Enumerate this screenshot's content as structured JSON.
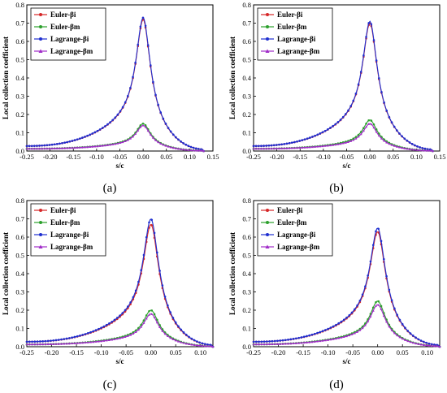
{
  "colors": {
    "euler_bi": "#d62728",
    "euler_bm": "#2ca02c",
    "lagrange_bi": "#1f2fd0",
    "lagrange_bm": "#a02cc8"
  },
  "chart_data": [
    {
      "type": "line",
      "panel_label": "(a)",
      "xlabel": "s/c",
      "ylabel": "Local collection coefficient",
      "xlim": [
        -0.25,
        0.15
      ],
      "ylim": [
        0.0,
        0.8
      ],
      "xticks": [
        "-0.25",
        "-0.20",
        "-0.15",
        "-0.10",
        "-0.05",
        "0.00",
        "0.05",
        "0.10",
        "0.15"
      ],
      "yticks": [
        "0.0",
        "0.1",
        "0.2",
        "0.3",
        "0.4",
        "0.5",
        "0.6",
        "0.7",
        "0.8"
      ],
      "legend_position": "top-left",
      "peak_x": 0.0,
      "series": [
        {
          "name": "Euler-βi",
          "peak": 0.72,
          "base_left": 0.025,
          "end_right": 0.13,
          "color": "#d62728",
          "marker": "circle"
        },
        {
          "name": "Euler-βm",
          "peak": 0.15,
          "base_left": 0.012,
          "end_right": 0.13,
          "color": "#2ca02c",
          "marker": "circle"
        },
        {
          "name": "Lagrange-βi",
          "peak": 0.73,
          "base_left": 0.025,
          "end_right": 0.13,
          "color": "#1f2fd0",
          "marker": "circle"
        },
        {
          "name": "Lagrange-βm",
          "peak": 0.14,
          "base_left": 0.012,
          "end_right": 0.13,
          "color": "#a02cc8",
          "marker": "triangle"
        }
      ]
    },
    {
      "type": "line",
      "panel_label": "(b)",
      "xlabel": "s/c",
      "ylabel": "Local collection coefficient",
      "xlim": [
        -0.25,
        0.15
      ],
      "ylim": [
        0.0,
        0.8
      ],
      "xticks": [
        "-0.25",
        "-0.20",
        "-0.15",
        "-0.10",
        "-0.05",
        "0.00",
        "0.05",
        "0.10",
        "0.15"
      ],
      "yticks": [
        "0.0",
        "0.1",
        "0.2",
        "0.3",
        "0.4",
        "0.5",
        "0.6",
        "0.7",
        "0.8"
      ],
      "legend_position": "top-left",
      "peak_x": 0.0,
      "series": [
        {
          "name": "Euler-βi",
          "peak": 0.7,
          "base_left": 0.025,
          "end_right": 0.135,
          "color": "#d62728",
          "marker": "circle"
        },
        {
          "name": "Euler-βm",
          "peak": 0.17,
          "base_left": 0.012,
          "end_right": 0.135,
          "color": "#2ca02c",
          "marker": "circle"
        },
        {
          "name": "Lagrange-βi",
          "peak": 0.71,
          "base_left": 0.025,
          "end_right": 0.135,
          "color": "#1f2fd0",
          "marker": "circle"
        },
        {
          "name": "Lagrange-βm",
          "peak": 0.15,
          "base_left": 0.012,
          "end_right": 0.135,
          "color": "#a02cc8",
          "marker": "triangle"
        }
      ]
    },
    {
      "type": "line",
      "panel_label": "(c)",
      "xlabel": "s/c",
      "ylabel": "Local collection coefficient",
      "xlim": [
        -0.25,
        0.125
      ],
      "ylim": [
        0.0,
        0.8
      ],
      "xticks": [
        "-0.25",
        "-0.20",
        "-0.15",
        "-0.10",
        "-0.05",
        "0.00",
        "0.05",
        "0.10"
      ],
      "yticks": [
        "0.0",
        "0.1",
        "0.2",
        "0.3",
        "0.4",
        "0.5",
        "0.6",
        "0.7",
        "0.8"
      ],
      "legend_position": "top-left",
      "peak_x": 0.0,
      "series": [
        {
          "name": "Euler-βi",
          "peak": 0.67,
          "base_left": 0.025,
          "end_right": 0.125,
          "color": "#d62728",
          "marker": "circle"
        },
        {
          "name": "Euler-βm",
          "peak": 0.2,
          "base_left": 0.012,
          "end_right": 0.125,
          "color": "#2ca02c",
          "marker": "circle"
        },
        {
          "name": "Lagrange-βi",
          "peak": 0.7,
          "base_left": 0.025,
          "end_right": 0.125,
          "color": "#1f2fd0",
          "marker": "circle"
        },
        {
          "name": "Lagrange-βm",
          "peak": 0.18,
          "base_left": 0.012,
          "end_right": 0.125,
          "color": "#a02cc8",
          "marker": "triangle"
        }
      ]
    },
    {
      "type": "line",
      "panel_label": "(d)",
      "xlabel": "s/c",
      "ylabel": "Local collection coefficient",
      "xlim": [
        -0.25,
        0.125
      ],
      "ylim": [
        0.0,
        0.8
      ],
      "xticks": [
        "-0.25",
        "-0.20",
        "-0.15",
        "-0.10",
        "-0.05",
        "0.00",
        "0.05",
        "0.10"
      ],
      "yticks": [
        "0.0",
        "0.1",
        "0.2",
        "0.3",
        "0.4",
        "0.5",
        "0.6",
        "0.7",
        "0.8"
      ],
      "legend_position": "top-left",
      "peak_x": 0.0,
      "series": [
        {
          "name": "Euler-βi",
          "peak": 0.63,
          "base_left": 0.025,
          "end_right": 0.125,
          "color": "#d62728",
          "marker": "circle"
        },
        {
          "name": "Euler-βm",
          "peak": 0.25,
          "base_left": 0.012,
          "end_right": 0.125,
          "color": "#2ca02c",
          "marker": "circle"
        },
        {
          "name": "Lagrange-βi",
          "peak": 0.65,
          "base_left": 0.025,
          "end_right": 0.125,
          "color": "#1f2fd0",
          "marker": "circle"
        },
        {
          "name": "Lagrange-βm",
          "peak": 0.23,
          "base_left": 0.012,
          "end_right": 0.125,
          "color": "#a02cc8",
          "marker": "triangle"
        }
      ]
    }
  ]
}
